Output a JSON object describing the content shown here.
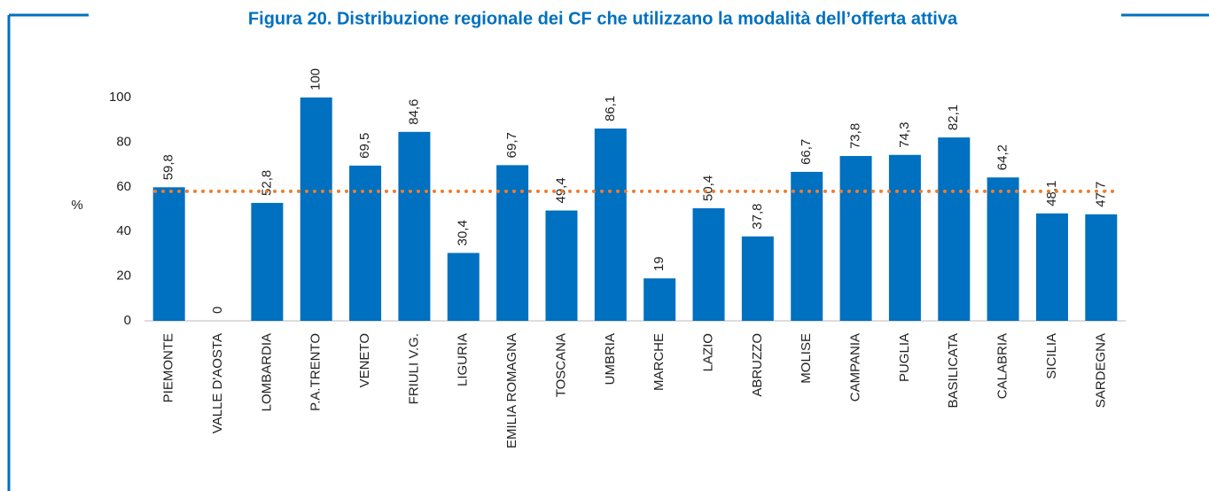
{
  "chart_data": {
    "type": "bar",
    "title": "Figura 20. Distribuzione regionale dei CF che utilizzano la modalità dell’offerta attiva",
    "y_label": "%",
    "categories": [
      "PIEMONTE",
      "VALLE D'AOSTA",
      "LOMBARDIA",
      "P.A.TRENTO",
      "VENETO",
      "FRIULI V.G.",
      "LIGURIA",
      "EMILIA ROMAGNA",
      "TOSCANA",
      "UMBRIA",
      "MARCHE",
      "LAZIO",
      "ABRUZZO",
      "MOLISE",
      "CAMPANIA",
      "PUGLIA",
      "BASILICATA",
      "CALABRIA",
      "SICILIA",
      "SARDEGNA"
    ],
    "values": [
      59.8,
      0,
      52.8,
      100,
      69.5,
      84.6,
      30.4,
      69.7,
      49.4,
      86.1,
      19,
      50.4,
      37.8,
      66.7,
      73.8,
      74.3,
      82.1,
      64.2,
      48.1,
      47.7
    ],
    "value_labels": [
      "59,8",
      "0",
      "52,8",
      "100",
      "69,5",
      "84,6",
      "30,4",
      "69,7",
      "49,4",
      "86,1",
      "19",
      "50,4",
      "37,8",
      "66,7",
      "73,8",
      "74,3",
      "82,1",
      "64,2",
      "48,1",
      "47,7"
    ],
    "color": "#0070c0",
    "reference_line": {
      "value": 58,
      "color": "#ed7d31"
    },
    "ylim": [
      0,
      100
    ],
    "yticks": [
      0,
      20,
      40,
      60,
      80,
      100
    ],
    "grid": false
  }
}
